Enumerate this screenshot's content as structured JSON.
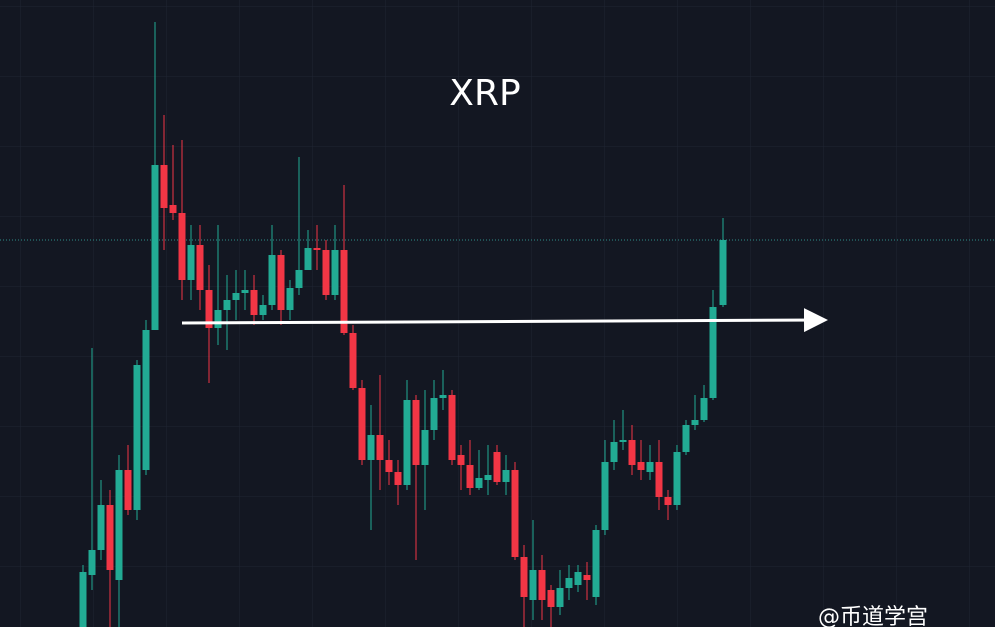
{
  "chart_data": {
    "type": "candlestick",
    "title": "XRP",
    "watermark": "@币道学宫",
    "up_color": "#22ab94",
    "down_color": "#f23645",
    "ylim": [
      0,
      627
    ],
    "open": [
      0,
      52,
      77,
      122,
      47,
      157,
      117,
      157,
      297,
      462,
      422,
      414,
      347,
      382,
      337,
      299,
      317,
      327,
      334,
      337,
      312,
      322,
      372,
      317,
      339,
      357,
      379,
      377,
      332,
      377,
      294,
      239,
      167,
      192,
      167,
      155,
      142,
      227,
      162,
      197,
      229,
      232,
      172,
      162,
      139,
      147,
      175,
      145,
      157,
      70,
      27,
      57,
      37,
      20,
      39,
      42,
      52,
      30,
      97,
      165,
      185,
      187,
      165,
      155,
      165,
      130,
      122,
      175,
      202,
      207,
      229,
      322
    ],
    "high": [
      62,
      279,
      147,
      137,
      172,
      182,
      267,
      307,
      605,
      512,
      482,
      487,
      402,
      402,
      362,
      402,
      352,
      357,
      357,
      352,
      332,
      402,
      377,
      347,
      470,
      397,
      402,
      387,
      402,
      442,
      302,
      247,
      222,
      252,
      187,
      167,
      247,
      232,
      237,
      247,
      257,
      237,
      182,
      187,
      177,
      182,
      182,
      172,
      165,
      82,
      107,
      72,
      42,
      57,
      62,
      62,
      65,
      102,
      187,
      207,
      217,
      202,
      187,
      182,
      187,
      137,
      182,
      207,
      232,
      242,
      337,
      409
    ],
    "low": [
      0,
      37,
      67,
      0,
      0,
      112,
      107,
      152,
      297,
      377,
      407,
      327,
      327,
      317,
      244,
      282,
      277,
      307,
      317,
      302,
      307,
      317,
      302,
      307,
      332,
      357,
      357,
      327,
      327,
      292,
      237,
      162,
      97,
      137,
      142,
      122,
      137,
      67,
      117,
      187,
      217,
      162,
      137,
      132,
      137,
      132,
      142,
      132,
      67,
      0,
      7,
      7,
      0,
      12,
      27,
      35,
      27,
      22,
      92,
      157,
      177,
      152,
      147,
      147,
      117,
      107,
      117,
      172,
      197,
      205,
      227,
      320
    ],
    "close": [
      55,
      77,
      122,
      57,
      157,
      117,
      262,
      297,
      462,
      419,
      414,
      347,
      382,
      337,
      299,
      317,
      327,
      334,
      337,
      312,
      322,
      372,
      317,
      339,
      357,
      379,
      377,
      332,
      377,
      294,
      239,
      167,
      192,
      167,
      155,
      142,
      227,
      162,
      197,
      229,
      232,
      167,
      162,
      139,
      149,
      152,
      145,
      157,
      70,
      30,
      57,
      27,
      20,
      39,
      49,
      55,
      47,
      97,
      165,
      185,
      187,
      162,
      157,
      165,
      130,
      122,
      175,
      202,
      207,
      229,
      320,
      387
    ]
  }
}
